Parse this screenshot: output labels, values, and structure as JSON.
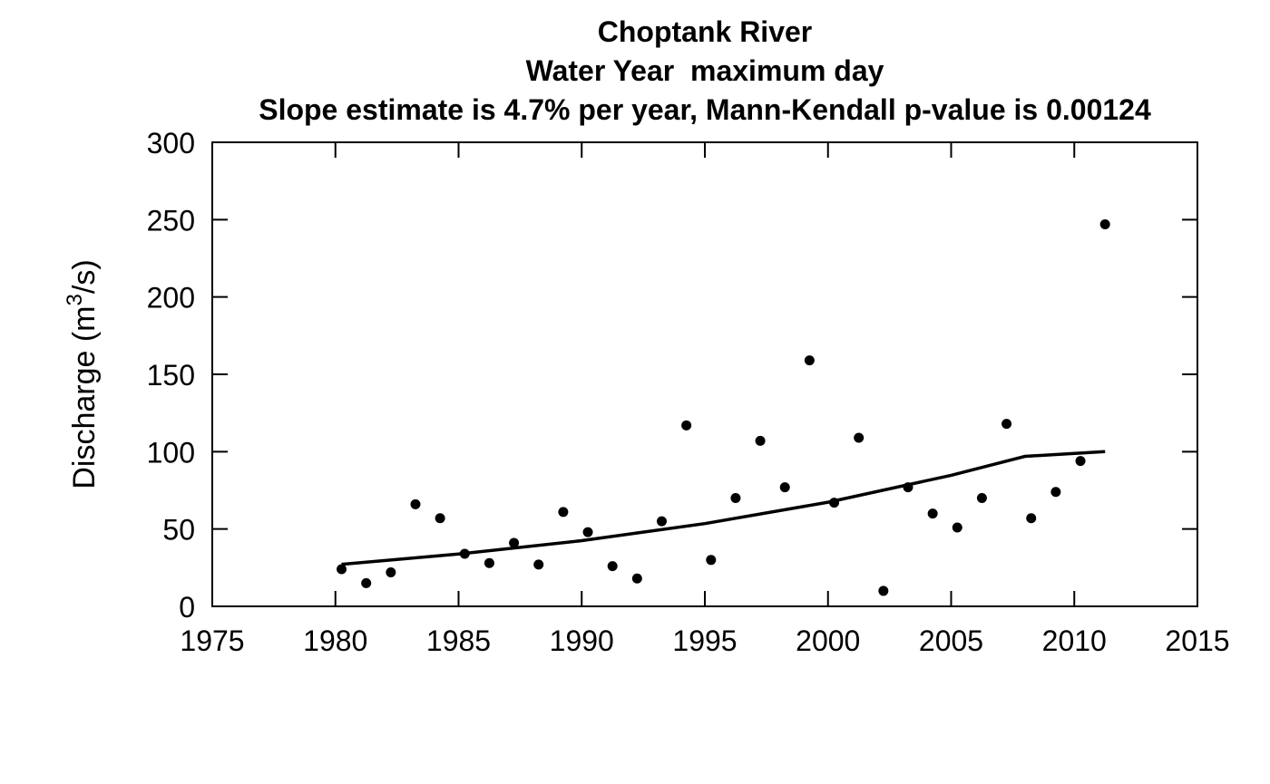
{
  "chart_data": {
    "type": "scatter",
    "title": "Choptank River",
    "subtitle": "Water Year  maximum day",
    "subtitle2": "Slope estimate is 4.7% per year, Mann-Kendall p-value is 0.00124",
    "xlabel": "",
    "ylabel": "Discharge (m³/s)",
    "ylabel_parts": {
      "pre": "Discharge (m",
      "sup": "3",
      "post": "/s)"
    },
    "xlim": [
      1975,
      2015
    ],
    "ylim": [
      0,
      300
    ],
    "xticks": [
      "1975",
      "1980",
      "1985",
      "1990",
      "1995",
      "2000",
      "2005",
      "2010",
      "2015"
    ],
    "yticks": [
      "0",
      "50",
      "100",
      "150",
      "200",
      "250",
      "300"
    ],
    "grid": false,
    "series": [
      {
        "type": "scatter",
        "x": [
          1980.25,
          1981.25,
          1982.25,
          1983.25,
          1984.25,
          1985.25,
          1986.25,
          1987.25,
          1988.25,
          1989.25,
          1990.25,
          1991.25,
          1992.25,
          1993.25,
          1994.25,
          1995.25,
          1996.25,
          1997.25,
          1998.25,
          1999.25,
          2000.25,
          2001.25,
          2002.25,
          2003.25,
          2004.25,
          2005.25,
          2006.25,
          2007.25,
          2008.25,
          2009.25,
          2010.25,
          2011.25
        ],
        "y": [
          24,
          15,
          22,
          66,
          57,
          34,
          28,
          41,
          27,
          61,
          48,
          26,
          18,
          55,
          117,
          30,
          70,
          107,
          77,
          159,
          67,
          109,
          10,
          77,
          60,
          51,
          70,
          118,
          57,
          74,
          94,
          247
        ]
      },
      {
        "type": "line",
        "x": [
          1980.25,
          1985,
          1990,
          1995,
          2000,
          2005,
          2008,
          2011.25
        ],
        "y": [
          27.2,
          33.8,
          42.5,
          53.5,
          67.3,
          84.7,
          97,
          100
        ]
      }
    ]
  }
}
